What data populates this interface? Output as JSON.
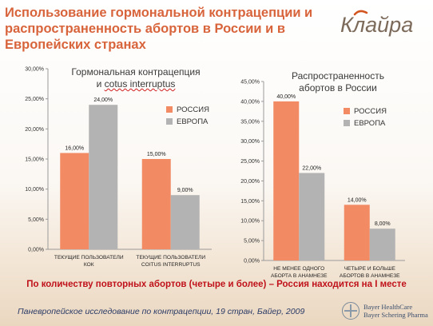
{
  "slide": {
    "title": "Использование гормональной контрацепции и распространенность абортов в России и в Европейских странах",
    "logo": "Клайра",
    "conclusion": "По количеству повторных абортов (четыре и более) – Россия находится на I месте",
    "source": "Паневропейское исследование по контрацепции, 19 стран, Байер, 2009",
    "company_line1": "Bayer HealthCare",
    "company_line2": "Bayer Schering Pharma",
    "company_logo_icon": "bayer-cross-icon"
  },
  "colors": {
    "russia": "#f28a64",
    "europe": "#b3b3b3"
  },
  "chart_data": [
    {
      "type": "bar",
      "title_line1": "Гормональная контрацепция",
      "title_line2_prefix": "и ",
      "title_line2_underlined": "cotus interruptus",
      "categories": [
        "ТЕКУЩИЕ ПОЛЬЗОВАТЕЛИ КОК",
        "ТЕКУЩИЕ ПОЛЬЗОВАТЕЛИ COITUS INTERRUPTUS"
      ],
      "category_lines": [
        [
          "ТЕКУЩИЕ ПОЛЬЗОВАТЕЛИ",
          "КОК"
        ],
        [
          "ТЕКУЩИЕ ПОЛЬЗОВАТЕЛИ",
          "COITUS INTERRUPTUS"
        ]
      ],
      "series": [
        {
          "name": "РОССИЯ",
          "values": [
            16,
            15
          ],
          "labels": [
            "16,00%",
            "15,00%"
          ]
        },
        {
          "name": "ЕВРОПА",
          "values": [
            24,
            9
          ],
          "labels": [
            "24,00%",
            "9,00%"
          ]
        }
      ],
      "ylim": [
        0,
        30
      ],
      "yticks": [
        "0,00%",
        "5,00%",
        "10,00%",
        "15,00%",
        "20,00%",
        "25,00%",
        "30,00%"
      ],
      "legend": "upper-left"
    },
    {
      "type": "bar",
      "title_line1": "Распространенность",
      "title_line2": "абортов в России",
      "categories": [
        "НЕ МЕНЕЕ ОДНОГО АБОРТА В АНАМНЕЗЕ",
        "ЧЕТЫРЕ И БОЛЬШЕ АБОРТОВ В АНАМНЕЗЕ"
      ],
      "category_lines": [
        [
          "НЕ МЕНЕЕ ОДНОГО",
          "АБОРТА В АНАМНЕЗЕ"
        ],
        [
          "ЧЕТЫРЕ И БОЛЬШЕ",
          "АБОРТОВ В АНАМНЕЗЕ"
        ]
      ],
      "series": [
        {
          "name": "РОССИЯ",
          "values": [
            40,
            14
          ],
          "labels": [
            "40,00%",
            "14,00%"
          ]
        },
        {
          "name": "ЕВРОПА",
          "values": [
            22,
            8
          ],
          "labels": [
            "22,00%",
            "8,00%"
          ]
        }
      ],
      "ylim": [
        0,
        45
      ],
      "yticks": [
        "0,00%",
        "5,00%",
        "10,00%",
        "15,00%",
        "20,00%",
        "25,00%",
        "30,00%",
        "35,00%",
        "40,00%",
        "45,00%"
      ],
      "legend": "upper-right"
    }
  ]
}
